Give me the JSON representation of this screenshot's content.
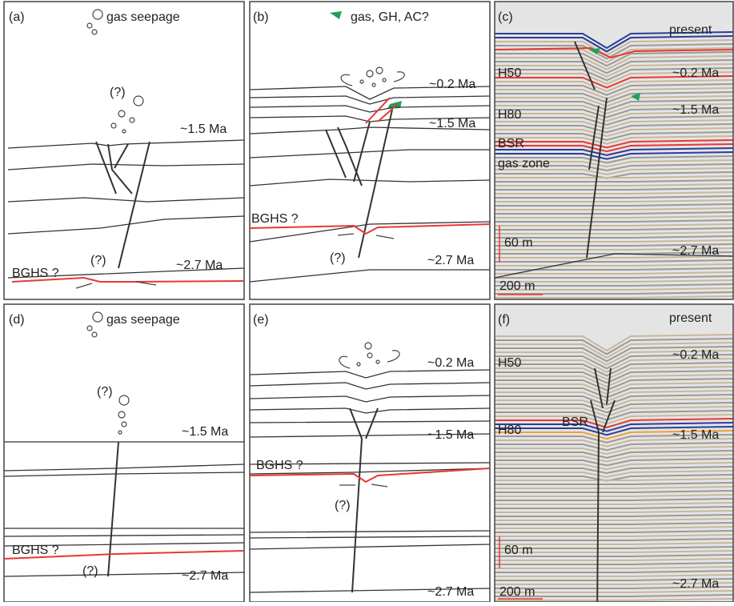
{
  "panels": [
    {
      "label": "(a)",
      "texts": [
        "gas seepage",
        "(?)",
        "~1.5 Ma",
        "(?)",
        "~2.7 Ma",
        "BGHS ?"
      ]
    },
    {
      "label": "(b)",
      "texts": [
        "gas, GH, AC?",
        "~0.2 Ma",
        "~1.5 Ma",
        "BGHS ?",
        "(?)",
        "~2.7 Ma"
      ]
    },
    {
      "label": "(c)",
      "texts": [
        "present",
        "H50",
        "~0.2 Ma",
        "H80",
        "~1.5 Ma",
        "BSR",
        "gas zone",
        "60 m",
        "~2.7 Ma",
        "200 m"
      ]
    },
    {
      "label": "(d)",
      "texts": [
        "gas seepage",
        "(?)",
        "~1.5 Ma",
        "BGHS ?",
        "(?)",
        "~2.7 Ma"
      ]
    },
    {
      "label": "(e)",
      "texts": [
        "~0.2 Ma",
        "~1.5 Ma",
        "BGHS ?",
        "(?)",
        "~2.7 Ma"
      ]
    },
    {
      "label": "(f)",
      "texts": [
        "present",
        "H50",
        "~0.2 Ma",
        "BSR",
        "H80",
        "~1.5 Ma",
        "60 m",
        "~2.7 Ma",
        "200 m"
      ]
    }
  ]
}
